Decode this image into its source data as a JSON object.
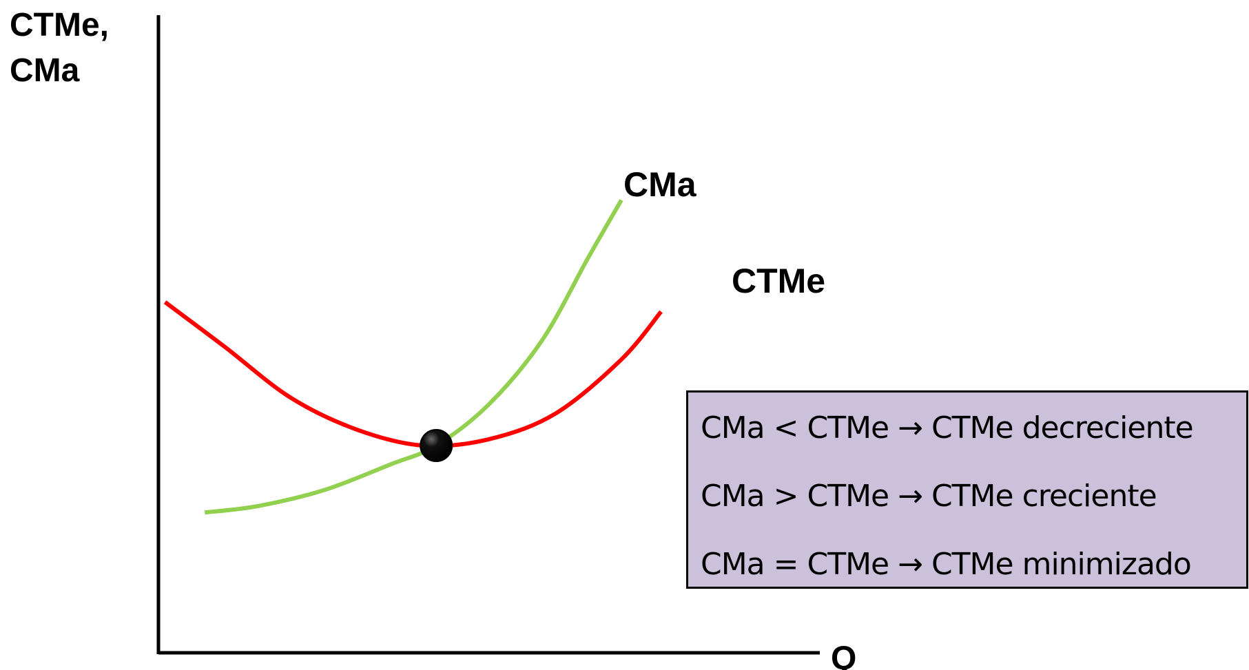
{
  "chart_data": {
    "type": "line",
    "title": "",
    "xlabel": "Q",
    "ylabel_lines": [
      "CTMe,",
      "CMa"
    ],
    "xlim": [
      0,
      10
    ],
    "ylim": [
      0,
      10
    ],
    "grid": false,
    "series": [
      {
        "name": "CTMe",
        "color": "#ff0000",
        "points": [
          [
            0.1,
            5.5
          ],
          [
            1.0,
            4.8
          ],
          [
            2.0,
            4.0
          ],
          [
            3.0,
            3.5
          ],
          [
            4.0,
            3.25
          ],
          [
            5.0,
            3.35
          ],
          [
            6.0,
            3.75
          ],
          [
            7.0,
            4.6
          ],
          [
            7.6,
            5.35
          ]
        ]
      },
      {
        "name": "CMa",
        "color": "#92d050",
        "points": [
          [
            0.7,
            2.2
          ],
          [
            1.5,
            2.3
          ],
          [
            2.5,
            2.55
          ],
          [
            3.5,
            2.95
          ],
          [
            4.2,
            3.25
          ],
          [
            5.0,
            3.9
          ],
          [
            5.8,
            4.9
          ],
          [
            6.5,
            6.2
          ],
          [
            7.0,
            7.1
          ]
        ]
      }
    ],
    "annotations": [
      {
        "type": "point",
        "label": "",
        "x": 4.2,
        "y": 3.25
      }
    ]
  },
  "legend_box": {
    "background": "#ccc1da",
    "lines": [
      "CMa < CTMe → CTMe decreciente",
      "CMa > CTMe → CTMe creciente",
      "CMa = CTMe → CTMe minimizado"
    ]
  }
}
